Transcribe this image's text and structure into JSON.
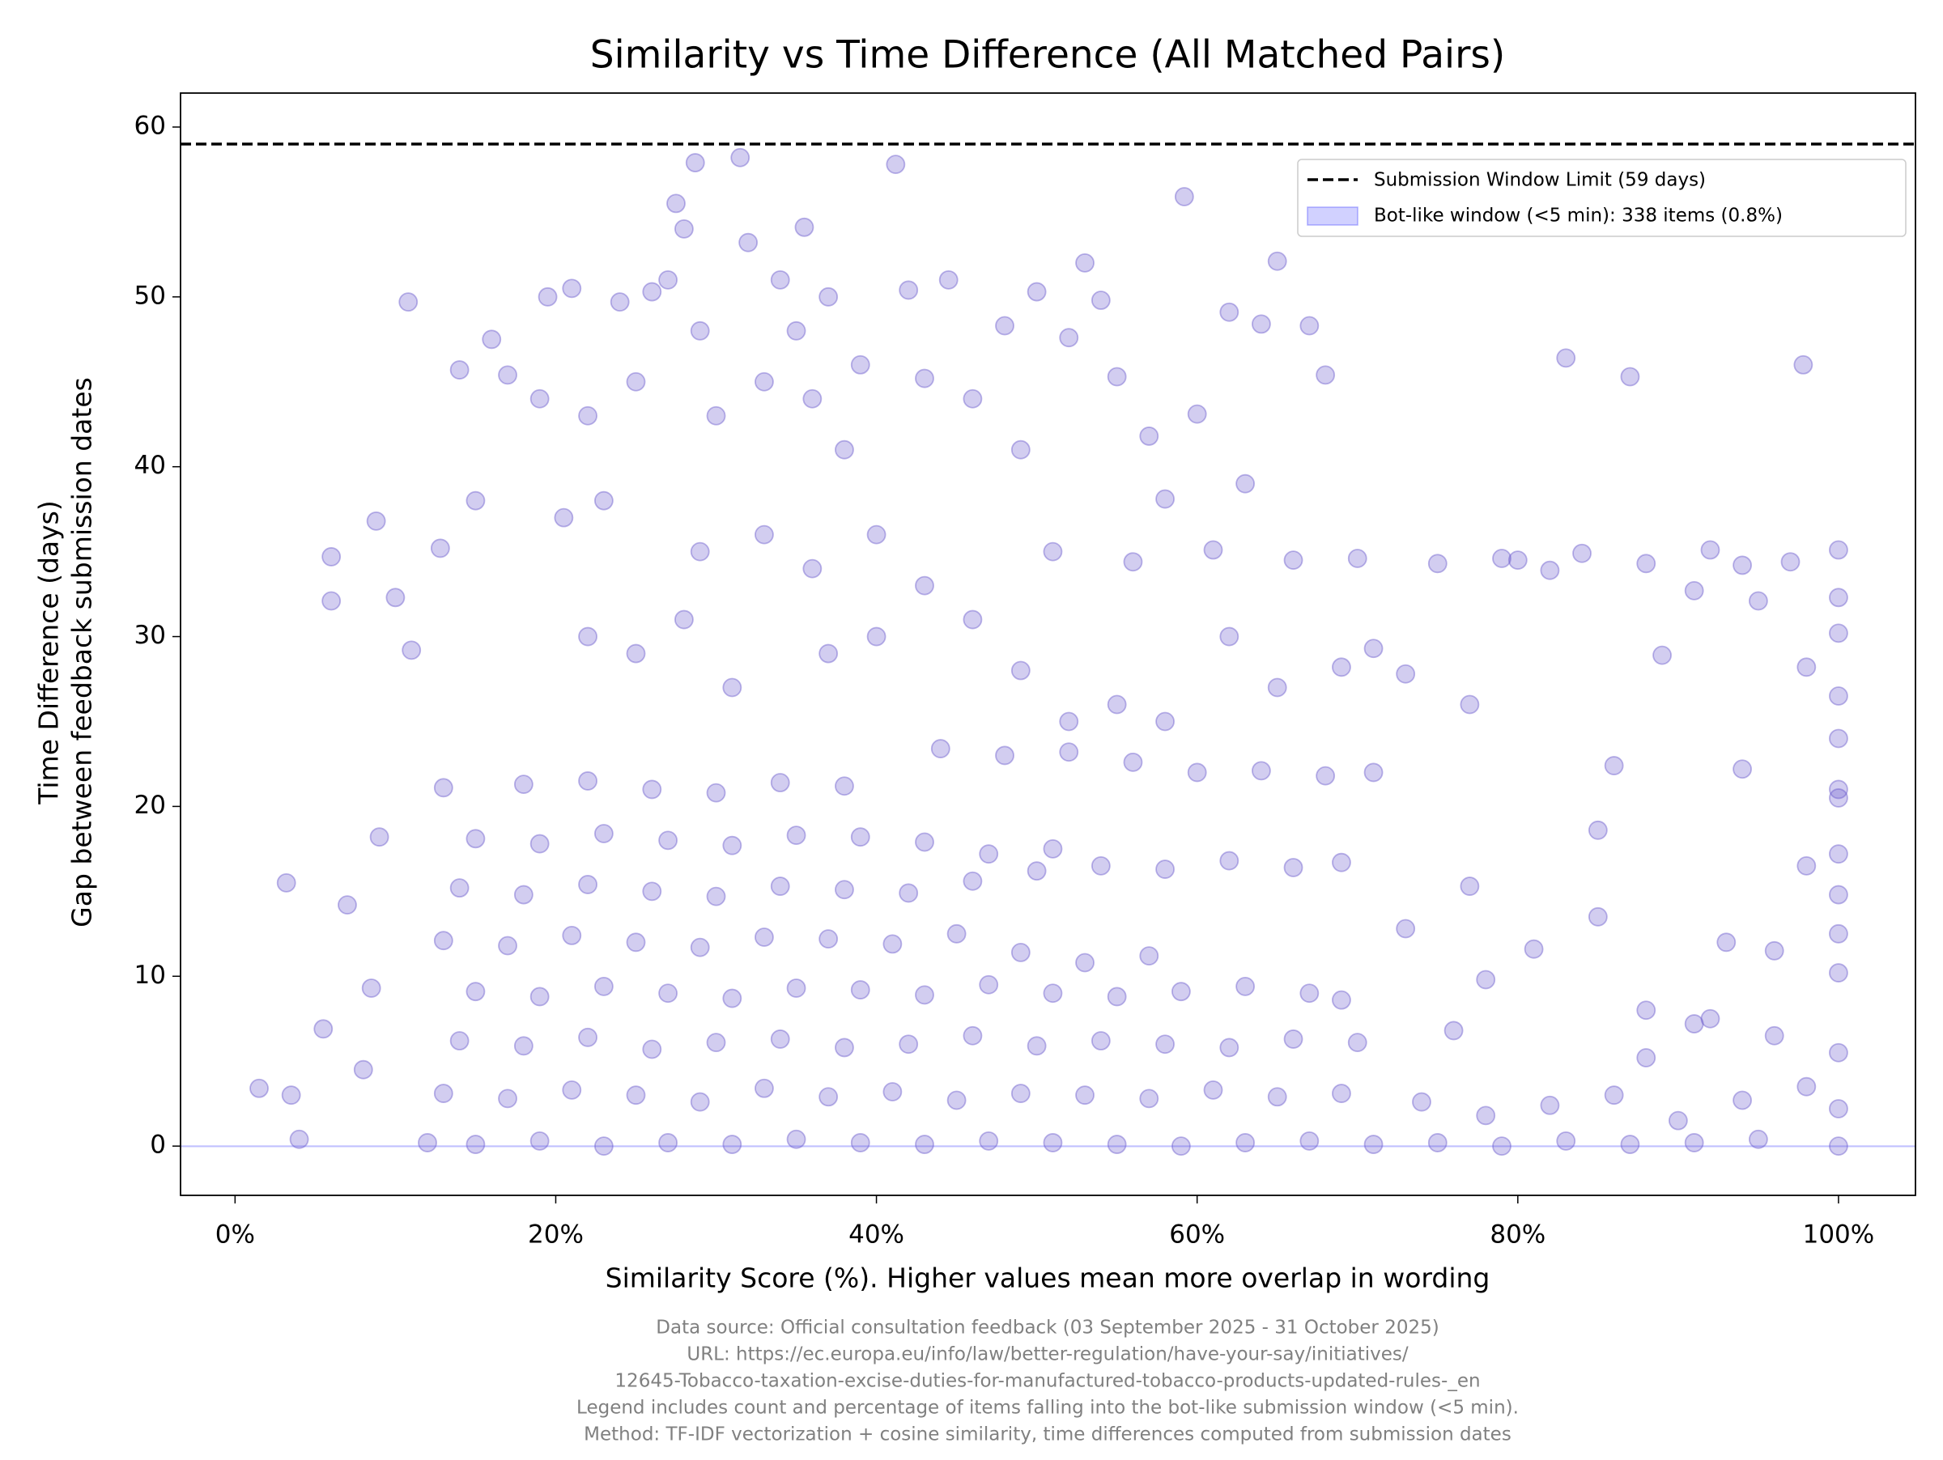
{
  "chart_data": {
    "type": "scatter",
    "title": "Similarity vs Time Difference (All Matched Pairs)",
    "x_label": "Similarity Score (%). Higher values mean more overlap in wording",
    "y_label": [
      "Time Difference (days)",
      "Gap between feedback submission dates"
    ],
    "footnote": [
      "Data source: Official consultation feedback (03 September 2025 - 31 October 2025)",
      "URL: https://ec.europa.eu/info/law/better-regulation/have-your-say/initiatives/",
      "12645-Tobacco-taxation-excise-duties-for-manufactured-tobacco-products-updated-rules-_en",
      "Legend includes count and percentage of items falling into the bot-like submission window (<5 min).",
      "Method: TF-IDF vectorization + cosine similarity, time differences computed from submission dates"
    ],
    "color": "#6a5acd",
    "xlim": [
      -3.4,
      104.8
    ],
    "ylim": [
      -2.9,
      62.0
    ],
    "xticks": [
      {
        "value": 0,
        "label": "0%"
      },
      {
        "value": 20,
        "label": "20%"
      },
      {
        "value": 40,
        "label": "40%"
      },
      {
        "value": 60,
        "label": "60%"
      },
      {
        "value": 80,
        "label": "80%"
      },
      {
        "value": 100,
        "label": "100%"
      }
    ],
    "yticks": [
      0,
      10,
      20,
      30,
      40,
      50,
      60
    ],
    "legend_loc": "upper right",
    "reference_line": {
      "value": 59,
      "color": "#000000",
      "label": "Submission Window Limit (59 days)"
    },
    "band": {
      "range": [
        0,
        0.00347
      ],
      "color": "#6666ff",
      "label": "Bot-like window (<5 min): 338 items (0.8%)"
    },
    "x": [
      12,
      15,
      19,
      23,
      27,
      31,
      35,
      39,
      43,
      47,
      51,
      55,
      59,
      63,
      67,
      71,
      75,
      79,
      83,
      87,
      91,
      95,
      100,
      13,
      17,
      21,
      25,
      29,
      33,
      37,
      41,
      45,
      49,
      53,
      57,
      61,
      65,
      69,
      74,
      78,
      82,
      86,
      90,
      94,
      98,
      100,
      14,
      18,
      22,
      26,
      30,
      34,
      38,
      42,
      46,
      50,
      54,
      58,
      62,
      66,
      70,
      76,
      88,
      96,
      100,
      15,
      19,
      23,
      27,
      31,
      35,
      39,
      43,
      47,
      51,
      55,
      59,
      63,
      67,
      69,
      78,
      92,
      100,
      13,
      17,
      21,
      25,
      29,
      33,
      37,
      41,
      45,
      49,
      53,
      57,
      73,
      81,
      100,
      14,
      18,
      22,
      26,
      30,
      34,
      38,
      42,
      46,
      50,
      54,
      58,
      62,
      66,
      69,
      77,
      100,
      15,
      19,
      23,
      27,
      31,
      35,
      39,
      43,
      47,
      51,
      100,
      13,
      18,
      22,
      26,
      30,
      34,
      38,
      44,
      48,
      52,
      56,
      60,
      64,
      68,
      71,
      1.5,
      3.2,
      3.5,
      4,
      5.5,
      6,
      6,
      7,
      8,
      8.5,
      8.8,
      9,
      10,
      10.8,
      11,
      12.8,
      14,
      15,
      16,
      17,
      19,
      19.5,
      20.5,
      21,
      22,
      23,
      24,
      25,
      26,
      27,
      27.5,
      28,
      28.7,
      29,
      30,
      31.5,
      32,
      33,
      34,
      35,
      35.5,
      36,
      37,
      38,
      39,
      40,
      41.2,
      42,
      43,
      44.5,
      46,
      48,
      49,
      50,
      51,
      52,
      53,
      54,
      55,
      56,
      57,
      58,
      59.2,
      60,
      61,
      62,
      63,
      64,
      65,
      66,
      67,
      68,
      69,
      70,
      71,
      73,
      75,
      77,
      79,
      80,
      82,
      83,
      84,
      85,
      86,
      87,
      88,
      89,
      91,
      92,
      94,
      95,
      97,
      97.8,
      98,
      100,
      100,
      100,
      100,
      100,
      100,
      100,
      98,
      96,
      85,
      88,
      91,
      93,
      94,
      29,
      33,
      36,
      22,
      25,
      28,
      31,
      37,
      40,
      43,
      46,
      49,
      52,
      55,
      58,
      62,
      65
    ],
    "values": [
      0.2,
      0.1,
      0.3,
      0,
      0.2,
      0.1,
      0.4,
      0.2,
      0.1,
      0.3,
      0.2,
      0.1,
      0,
      0.2,
      0.3,
      0.1,
      0.2,
      0,
      0.3,
      0.1,
      0.2,
      0.4,
      0,
      3.1,
      2.8,
      3.3,
      3.0,
      2.6,
      3.4,
      2.9,
      3.2,
      2.7,
      3.1,
      3.0,
      2.8,
      3.3,
      2.9,
      3.1,
      2.6,
      1.8,
      2.4,
      3.0,
      1.5,
      2.7,
      3.5,
      2.2,
      6.2,
      5.9,
      6.4,
      5.7,
      6.1,
      6.3,
      5.8,
      6.0,
      6.5,
      5.9,
      6.2,
      6.0,
      5.8,
      6.3,
      6.1,
      6.8,
      5.2,
      6.5,
      5.5,
      9.1,
      8.8,
      9.4,
      9.0,
      8.7,
      9.3,
      9.2,
      8.9,
      9.5,
      9.0,
      8.8,
      9.1,
      9.4,
      9.0,
      8.6,
      9.8,
      7.5,
      10.2,
      12.1,
      11.8,
      12.4,
      12.0,
      11.7,
      12.3,
      12.2,
      11.9,
      12.5,
      11.4,
      10.8,
      11.2,
      12.8,
      11.6,
      12.5,
      15.2,
      14.8,
      15.4,
      15.0,
      14.7,
      15.3,
      15.1,
      14.9,
      15.6,
      16.2,
      16.5,
      16.3,
      16.8,
      16.4,
      16.7,
      15.3,
      14.8,
      18.1,
      17.8,
      18.4,
      18.0,
      17.7,
      18.3,
      18.2,
      17.9,
      17.2,
      17.5,
      17.2,
      21.1,
      21.3,
      21.5,
      21.0,
      20.8,
      21.4,
      21.2,
      23.4,
      23.0,
      23.2,
      22.6,
      22.0,
      22.1,
      21.8,
      22.0,
      3.4,
      15.5,
      3.0,
      0.4,
      6.9,
      34.7,
      32.1,
      14.2,
      4.5,
      9.3,
      36.8,
      18.2,
      32.3,
      49.7,
      29.2,
      35.2,
      45.7,
      38,
      47.5,
      45.4,
      44,
      50,
      37,
      50.5,
      43,
      38,
      49.7,
      45,
      50.3,
      51,
      55.5,
      54,
      57.9,
      48,
      43,
      58.2,
      53.2,
      45,
      51,
      48,
      54.1,
      44,
      50,
      41,
      46,
      36,
      57.8,
      50.4,
      45.2,
      51,
      44,
      48.3,
      41,
      50.3,
      35,
      47.6,
      52,
      49.8,
      45.3,
      34.4,
      41.8,
      38.1,
      55.9,
      43.1,
      35.1,
      49.1,
      39,
      48.4,
      52.1,
      34.5,
      48.3,
      45.4,
      28.2,
      34.6,
      29.3,
      27.8,
      34.3,
      26,
      34.6,
      34.5,
      33.9,
      46.4,
      34.9,
      18.6,
      22.4,
      45.3,
      34.3,
      28.9,
      32.7,
      35.1,
      34.2,
      32.1,
      34.4,
      46,
      28.2,
      35.1,
      32.3,
      30.2,
      26.5,
      24,
      21,
      20.5,
      16.5,
      11.5,
      13.5,
      8,
      7.2,
      12,
      22.2,
      35,
      36,
      34,
      30,
      29,
      31,
      27,
      29,
      30,
      33,
      31,
      28,
      25,
      26,
      25,
      30,
      27
    ]
  }
}
